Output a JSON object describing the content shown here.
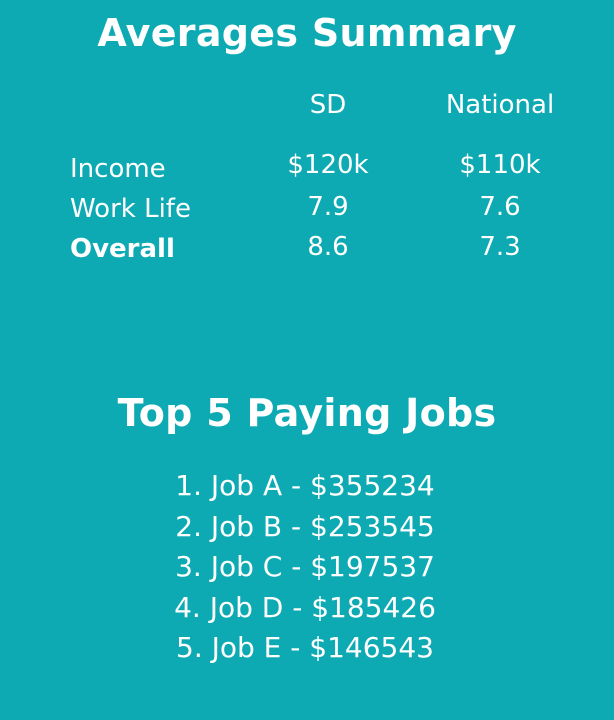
{
  "averages": {
    "title": "Averages Summary",
    "columns": {
      "sd": "SD",
      "national": "National"
    },
    "rows": [
      {
        "label": "Income",
        "sd": "$120k",
        "national": "$110k"
      },
      {
        "label": "Work Life",
        "sd": "7.9",
        "national": "7.6"
      },
      {
        "label": "Overall",
        "sd": "8.6",
        "national": "7.3"
      }
    ]
  },
  "top_jobs": {
    "title": "Top 5 Paying Jobs",
    "items": [
      "1. Job A - $355234",
      "2. Job B - $253545",
      "3. Job C - $197537",
      "4. Job D - $185426",
      "5. Job E - $146543"
    ]
  },
  "colors": {
    "background": "#0eaab4",
    "text": "#ffffff"
  }
}
